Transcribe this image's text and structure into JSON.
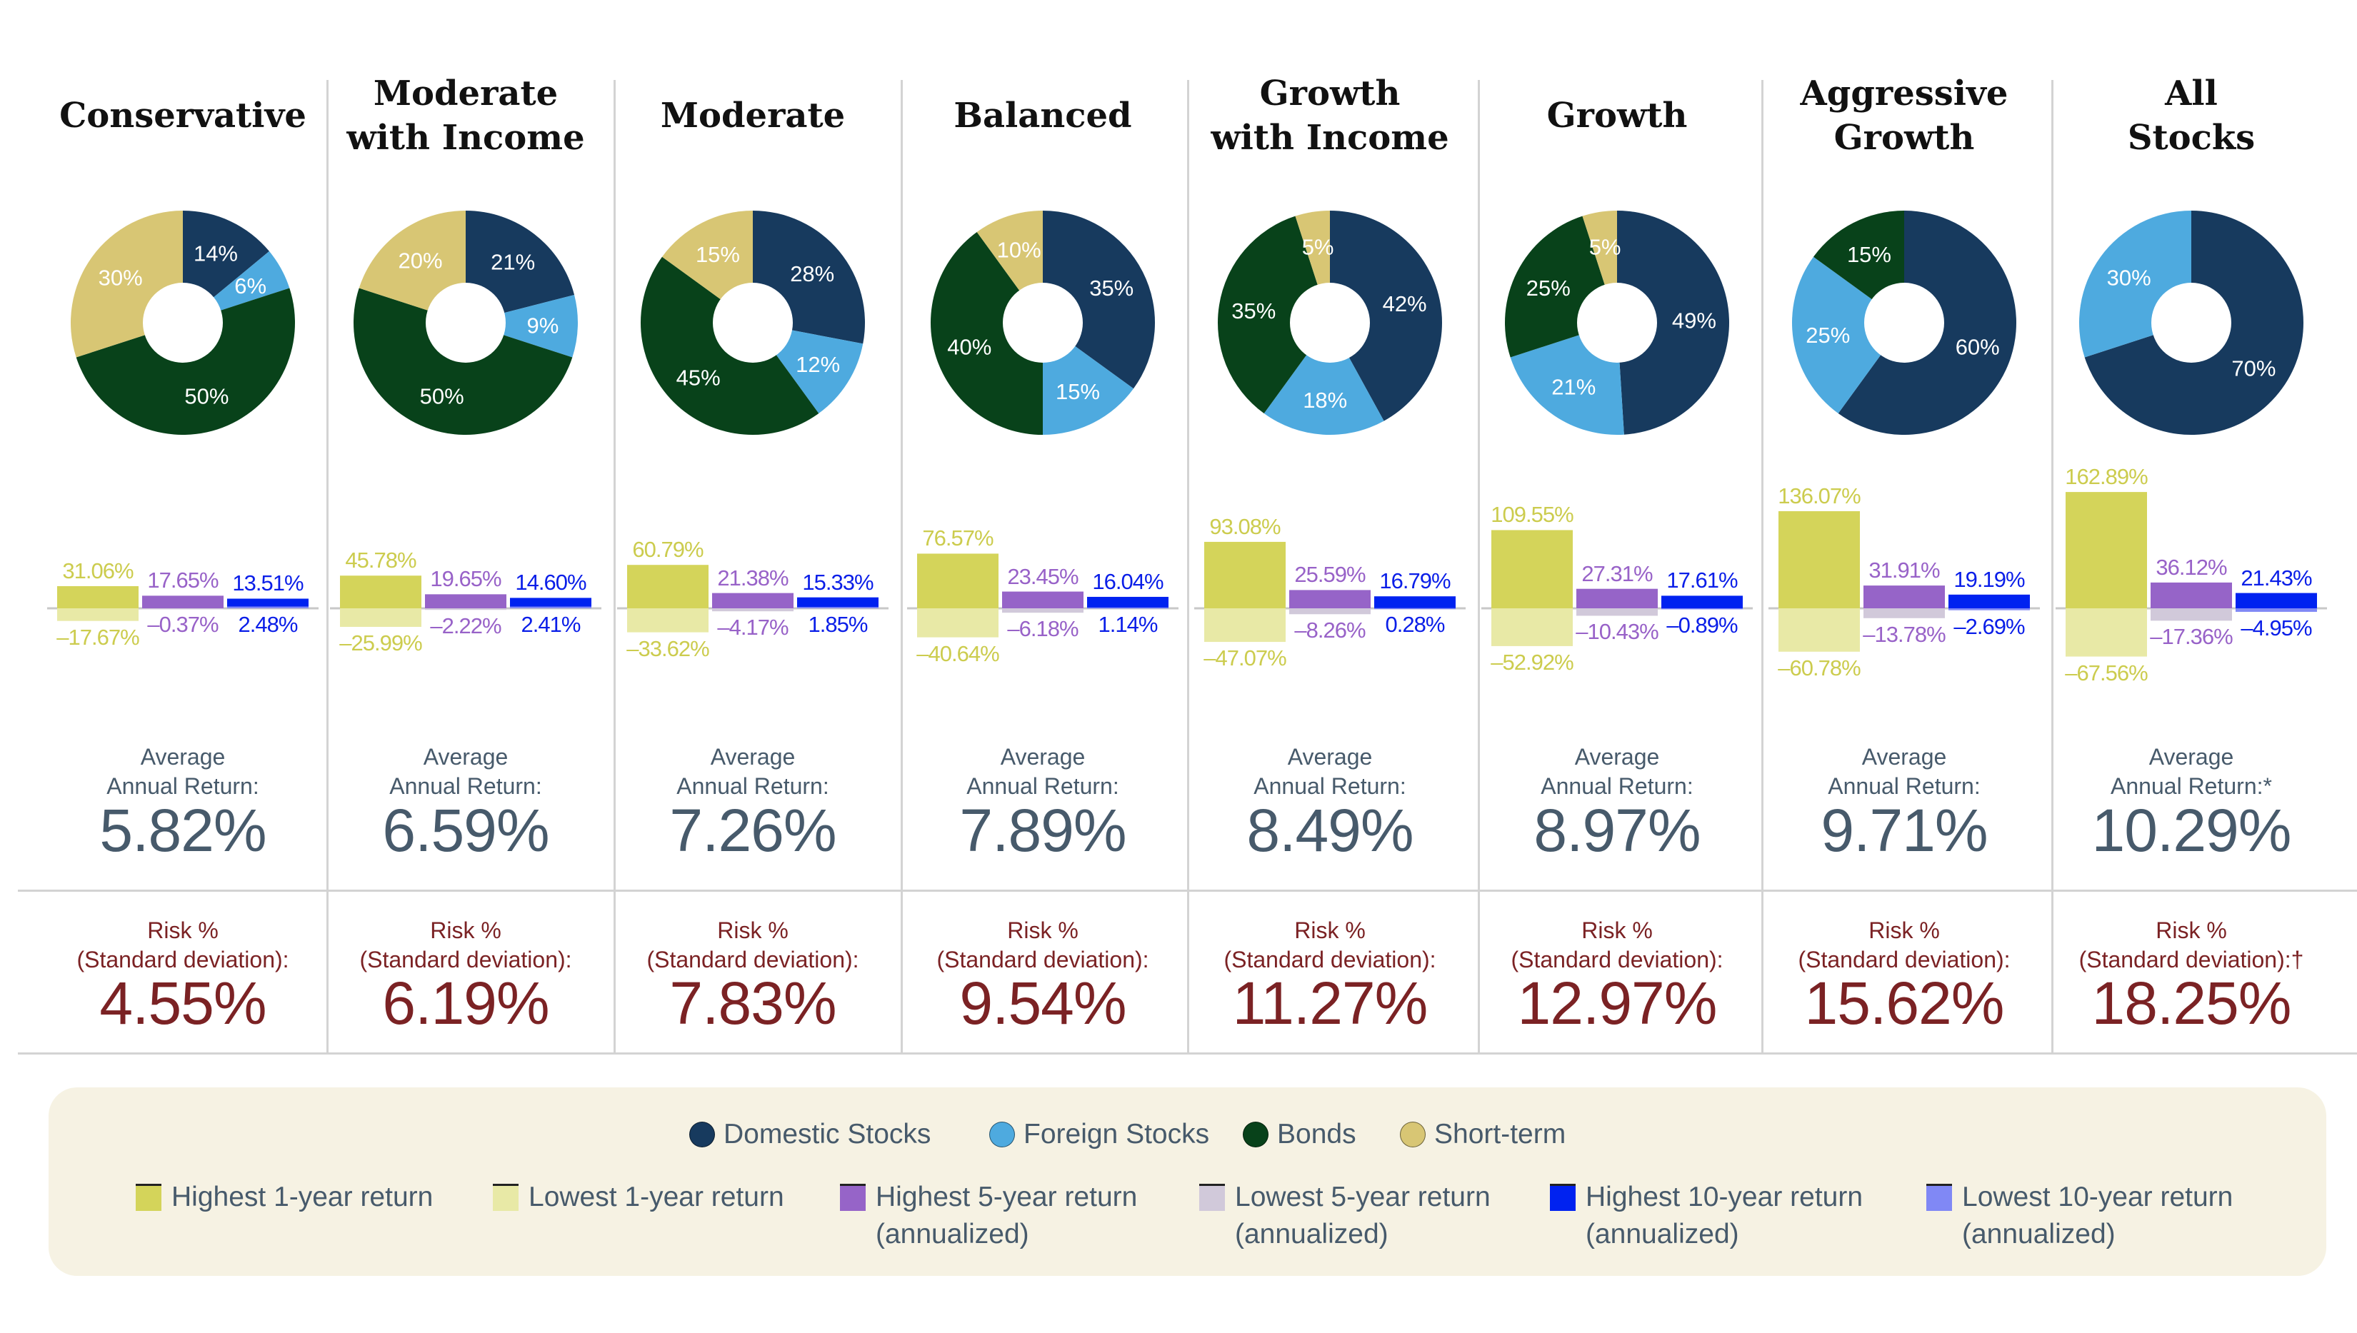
{
  "colors": {
    "domestic": "#173a5e",
    "foreign": "#4eaadf",
    "bonds": "#08421a",
    "short_term": "#d8c674",
    "high1": "#d4d45a",
    "low1": "#e8e9a6",
    "high5": "#9664c8",
    "low5": "#d1c9da",
    "high10": "#0022f0",
    "low10": "#8088f5",
    "label1": "#cccc4e",
    "label5": "#9862c8",
    "label10": "#0a1ee8"
  },
  "chart_data": [
    {
      "type": "pie",
      "title": [
        "Conservative"
      ],
      "slices": [
        {
          "name": "Domestic Stocks",
          "value": 14
        },
        {
          "name": "Foreign Stocks",
          "value": 6
        },
        {
          "name": "Bonds",
          "value": 50
        },
        {
          "name": "Short-term",
          "value": 30
        }
      ],
      "bars": {
        "type": "bar",
        "high_1yr": 31.06,
        "low_1yr": -17.67,
        "high_5yr": 17.65,
        "low_5yr": -0.37,
        "high_10yr": 13.51,
        "low_10yr": 2.48,
        "labels": [
          "31.06%",
          "–17.67%",
          "17.65%",
          "–0.37%",
          "13.51%",
          "2.48%"
        ]
      },
      "avg_label": [
        "Average",
        "Annual Return:"
      ],
      "avg_value": "5.82%",
      "risk_label": [
        "Risk %",
        "(Standard deviation):"
      ],
      "risk_value": "4.55%"
    },
    {
      "type": "pie",
      "title": [
        "Moderate",
        "with Income"
      ],
      "slices": [
        {
          "name": "Domestic Stocks",
          "value": 21
        },
        {
          "name": "Foreign Stocks",
          "value": 9
        },
        {
          "name": "Bonds",
          "value": 50
        },
        {
          "name": "Short-term",
          "value": 20
        }
      ],
      "bars": {
        "type": "bar",
        "high_1yr": 45.78,
        "low_1yr": -25.99,
        "high_5yr": 19.65,
        "low_5yr": -2.22,
        "high_10yr": 14.6,
        "low_10yr": 2.41,
        "labels": [
          "45.78%",
          "–25.99%",
          "19.65%",
          "–2.22%",
          "14.60%",
          "2.41%"
        ]
      },
      "avg_label": [
        "Average",
        "Annual Return:"
      ],
      "avg_value": "6.59%",
      "risk_label": [
        "Risk %",
        "(Standard deviation):"
      ],
      "risk_value": "6.19%"
    },
    {
      "type": "pie",
      "title": [
        "Moderate"
      ],
      "slices": [
        {
          "name": "Domestic Stocks",
          "value": 28
        },
        {
          "name": "Foreign Stocks",
          "value": 12
        },
        {
          "name": "Bonds",
          "value": 45
        },
        {
          "name": "Short-term",
          "value": 15
        }
      ],
      "bars": {
        "type": "bar",
        "high_1yr": 60.79,
        "low_1yr": -33.62,
        "high_5yr": 21.38,
        "low_5yr": -4.17,
        "high_10yr": 15.33,
        "low_10yr": 1.85,
        "labels": [
          "60.79%",
          "–33.62%",
          "21.38%",
          "–4.17%",
          "15.33%",
          "1.85%"
        ]
      },
      "avg_label": [
        "Average",
        "Annual Return:"
      ],
      "avg_value": "7.26%",
      "risk_label": [
        "Risk %",
        "(Standard deviation):"
      ],
      "risk_value": "7.83%"
    },
    {
      "type": "pie",
      "title": [
        "Balanced"
      ],
      "slices": [
        {
          "name": "Domestic Stocks",
          "value": 35
        },
        {
          "name": "Foreign Stocks",
          "value": 15
        },
        {
          "name": "Bonds",
          "value": 40
        },
        {
          "name": "Short-term",
          "value": 10
        }
      ],
      "bars": {
        "type": "bar",
        "high_1yr": 76.57,
        "low_1yr": -40.64,
        "high_5yr": 23.45,
        "low_5yr": -6.18,
        "high_10yr": 16.04,
        "low_10yr": 1.14,
        "labels": [
          "76.57%",
          "–40.64%",
          "23.45%",
          "–6.18%",
          "16.04%",
          "1.14%"
        ]
      },
      "avg_label": [
        "Average",
        "Annual Return:"
      ],
      "avg_value": "7.89%",
      "risk_label": [
        "Risk %",
        "(Standard deviation):"
      ],
      "risk_value": "9.54%"
    },
    {
      "type": "pie",
      "title": [
        "Growth",
        "with Income"
      ],
      "slices": [
        {
          "name": "Domestic Stocks",
          "value": 42
        },
        {
          "name": "Foreign Stocks",
          "value": 18
        },
        {
          "name": "Bonds",
          "value": 35
        },
        {
          "name": "Short-term",
          "value": 5
        }
      ],
      "bars": {
        "type": "bar",
        "high_1yr": 93.08,
        "low_1yr": -47.07,
        "high_5yr": 25.59,
        "low_5yr": -8.26,
        "high_10yr": 16.79,
        "low_10yr": 0.28,
        "labels": [
          "93.08%",
          "–47.07%",
          "25.59%",
          "–8.26%",
          "16.79%",
          "0.28%"
        ]
      },
      "avg_label": [
        "Average",
        "Annual Return:"
      ],
      "avg_value": "8.49%",
      "risk_label": [
        "Risk %",
        "(Standard deviation):"
      ],
      "risk_value": "11.27%"
    },
    {
      "type": "pie",
      "title": [
        "Growth"
      ],
      "slices": [
        {
          "name": "Domestic Stocks",
          "value": 49
        },
        {
          "name": "Foreign Stocks",
          "value": 21
        },
        {
          "name": "Bonds",
          "value": 25
        },
        {
          "name": "Short-term",
          "value": 5
        }
      ],
      "bars": {
        "type": "bar",
        "high_1yr": 109.55,
        "low_1yr": -52.92,
        "high_5yr": 27.31,
        "low_5yr": -10.43,
        "high_10yr": 17.61,
        "low_10yr": -0.89,
        "labels": [
          "109.55%",
          "–52.92%",
          "27.31%",
          "–10.43%",
          "17.61%",
          "–0.89%"
        ]
      },
      "avg_label": [
        "Average",
        "Annual Return:"
      ],
      "avg_value": "8.97%",
      "risk_label": [
        "Risk %",
        "(Standard deviation):"
      ],
      "risk_value": "12.97%"
    },
    {
      "type": "pie",
      "title": [
        "Aggressive",
        "Growth"
      ],
      "slices": [
        {
          "name": "Domestic Stocks",
          "value": 60
        },
        {
          "name": "Foreign Stocks",
          "value": 25
        },
        {
          "name": "Bonds",
          "value": 15
        },
        {
          "name": "Short-term",
          "value": 0
        }
      ],
      "bars": {
        "type": "bar",
        "high_1yr": 136.07,
        "low_1yr": -60.78,
        "high_5yr": 31.91,
        "low_5yr": -13.78,
        "high_10yr": 19.19,
        "low_10yr": -2.69,
        "labels": [
          "136.07%",
          "–60.78%",
          "31.91%",
          "–13.78%",
          "19.19%",
          "–2.69%"
        ]
      },
      "avg_label": [
        "Average",
        "Annual Return:"
      ],
      "avg_value": "9.71%",
      "risk_label": [
        "Risk %",
        "(Standard deviation):"
      ],
      "risk_value": "15.62%"
    },
    {
      "type": "pie",
      "title": [
        "All",
        "Stocks"
      ],
      "slices": [
        {
          "name": "Domestic Stocks",
          "value": 70
        },
        {
          "name": "Foreign Stocks",
          "value": 30
        },
        {
          "name": "Bonds",
          "value": 0
        },
        {
          "name": "Short-term",
          "value": 0
        }
      ],
      "bars": {
        "type": "bar",
        "high_1yr": 162.89,
        "low_1yr": -67.56,
        "high_5yr": 36.12,
        "low_5yr": -17.36,
        "high_10yr": 21.43,
        "low_10yr": -4.95,
        "labels": [
          "162.89%",
          "–67.56%",
          "36.12%",
          "–17.36%",
          "21.43%",
          "–4.95%"
        ]
      },
      "avg_label": [
        "Average",
        "Annual Return:*"
      ],
      "avg_value": "10.29%",
      "risk_label": [
        "Risk %",
        "(Standard deviation):†"
      ],
      "risk_value": "18.25%"
    }
  ],
  "legend": {
    "slices": [
      "Domestic Stocks",
      "Foreign Stocks",
      "Bonds",
      "Short-term"
    ],
    "bars": [
      {
        "line1": "Highest 1-year return",
        "line2": ""
      },
      {
        "line1": "Lowest 1-year return",
        "line2": ""
      },
      {
        "line1": "Highest 5-year return",
        "line2": "(annualized)"
      },
      {
        "line1": "Lowest 5-year return",
        "line2": "(annualized)"
      },
      {
        "line1": "Highest 10-year return",
        "line2": "(annualized)"
      },
      {
        "line1": "Lowest 10-year return",
        "line2": "(annualized)"
      }
    ]
  }
}
